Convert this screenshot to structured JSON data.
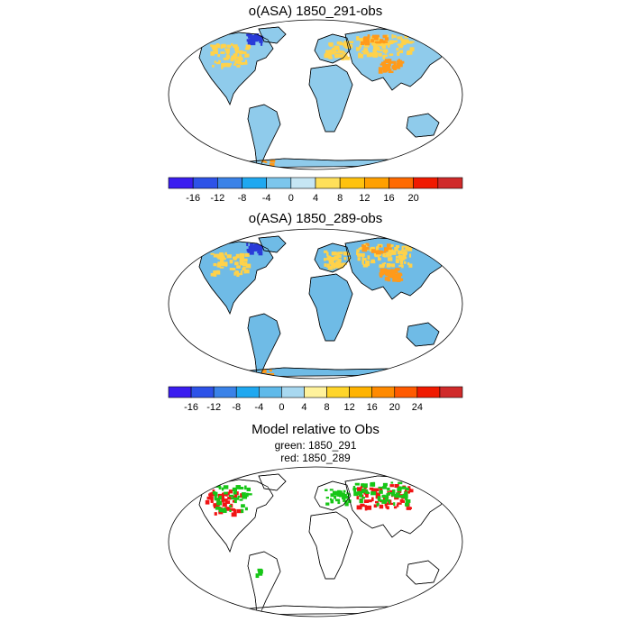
{
  "panels": [
    {
      "title": "o(ASA) 1850_291-obs",
      "colorbar": {
        "colors": [
          "#3a1df0",
          "#2d52e8",
          "#3a82e8",
          "#1fa8f0",
          "#7cc6ec",
          "#c6e6f4",
          "#ffe05a",
          "#ffc20e",
          "#ffa000",
          "#ff6a00",
          "#f01a00",
          "#d02a2a"
        ],
        "ticks": [
          "-16",
          "-12",
          "-8",
          "-4",
          "0",
          "4",
          "8",
          "12",
          "16",
          "20"
        ]
      }
    },
    {
      "title": "o(ASA) 1850_289-obs",
      "colorbar": {
        "colors": [
          "#3a1df0",
          "#2d52e8",
          "#3a82e8",
          "#1fa8f0",
          "#5fbaea",
          "#a8d8f0",
          "#fff29c",
          "#ffd52a",
          "#ffb300",
          "#ff8a00",
          "#ff5a00",
          "#f01a00",
          "#d02a2a"
        ],
        "ticks": [
          "-16",
          "-12",
          "-8",
          "-4",
          "0",
          "4",
          "8",
          "12",
          "16",
          "20",
          "24"
        ]
      }
    },
    {
      "title": "Model relative to Obs",
      "legend": [
        "green: 1850_291",
        "red: 1850_289"
      ]
    }
  ],
  "colors": {
    "ocean": "#ffffff",
    "land_base_1": "#8fcbeb",
    "land_base_2": "#6fbbe6",
    "warm": "#ffd24a",
    "hot": "#ff9a1a",
    "cold": "#2a3bd9",
    "green": "#17c617",
    "red": "#f01414"
  }
}
